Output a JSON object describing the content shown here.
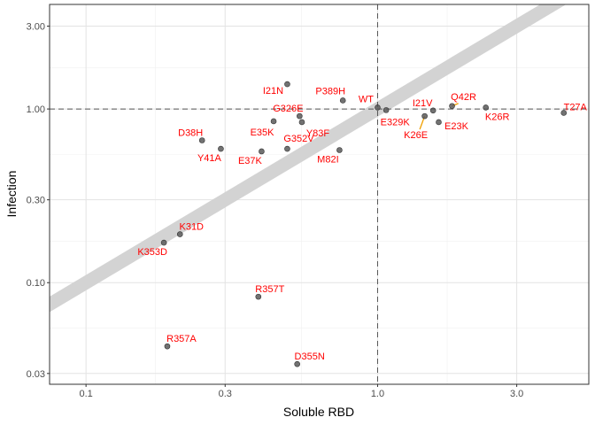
{
  "chart_data": {
    "type": "scatter",
    "title": "",
    "xlabel": "Soluble RBD",
    "ylabel": "Infection",
    "x_scale": "log",
    "y_scale": "log",
    "xlim": [
      0.075,
      5.3
    ],
    "ylim": [
      0.026,
      4.0
    ],
    "x_ticks": [
      {
        "value": 0.1,
        "label": "0.1"
      },
      {
        "value": 0.3,
        "label": "0.3"
      },
      {
        "value": 1.0,
        "label": "1.0"
      },
      {
        "value": 3.0,
        "label": "3.0"
      }
    ],
    "y_ticks": [
      {
        "value": 0.03,
        "label": "0.03"
      },
      {
        "value": 0.1,
        "label": "0.10"
      },
      {
        "value": 0.3,
        "label": "0.30"
      },
      {
        "value": 1.0,
        "label": "1.00"
      },
      {
        "value": 3.0,
        "label": "3.00"
      }
    ],
    "grid": true,
    "reference_lines": {
      "x": 1.0,
      "y": 1.0,
      "style": "dashed"
    },
    "trend_line": {
      "slope": 1,
      "intercept": 0,
      "color": "#d3d3d3"
    },
    "point_color": "#595959",
    "label_color": "#ff0000",
    "leader_color": "#f0a000",
    "points": [
      {
        "label": "WT",
        "x": 1.0,
        "y": 1.02
      },
      {
        "label": "E329K",
        "x": 1.07,
        "y": 0.985
      },
      {
        "label": "I21N",
        "x": 0.49,
        "y": 1.39
      },
      {
        "label": "P389H",
        "x": 0.76,
        "y": 1.12
      },
      {
        "label": "G326E",
        "x": 0.54,
        "y": 0.91
      },
      {
        "label": "E35K",
        "x": 0.44,
        "y": 0.85
      },
      {
        "label": "Y83F",
        "x": 0.55,
        "y": 0.84
      },
      {
        "label": "D38H",
        "x": 0.25,
        "y": 0.66
      },
      {
        "label": "Y41A",
        "x": 0.29,
        "y": 0.59
      },
      {
        "label": "G352V",
        "x": 0.49,
        "y": 0.59
      },
      {
        "label": "E37K",
        "x": 0.4,
        "y": 0.57
      },
      {
        "label": "M82I",
        "x": 0.74,
        "y": 0.58
      },
      {
        "label": "Q42R",
        "x": 1.8,
        "y": 1.04
      },
      {
        "label": "I21V",
        "x": 1.55,
        "y": 0.98
      },
      {
        "label": "K26E",
        "x": 1.45,
        "y": 0.91
      },
      {
        "label": "E23K",
        "x": 1.62,
        "y": 0.84
      },
      {
        "label": "K26R",
        "x": 2.35,
        "y": 1.02
      },
      {
        "label": "T27A",
        "x": 4.35,
        "y": 0.95
      },
      {
        "label": "K31D",
        "x": 0.21,
        "y": 0.19
      },
      {
        "label": "K353D",
        "x": 0.185,
        "y": 0.17
      },
      {
        "label": "R357T",
        "x": 0.39,
        "y": 0.083
      },
      {
        "label": "R357A",
        "x": 0.19,
        "y": 0.043
      },
      {
        "label": "D355N",
        "x": 0.53,
        "y": 0.034
      }
    ]
  }
}
